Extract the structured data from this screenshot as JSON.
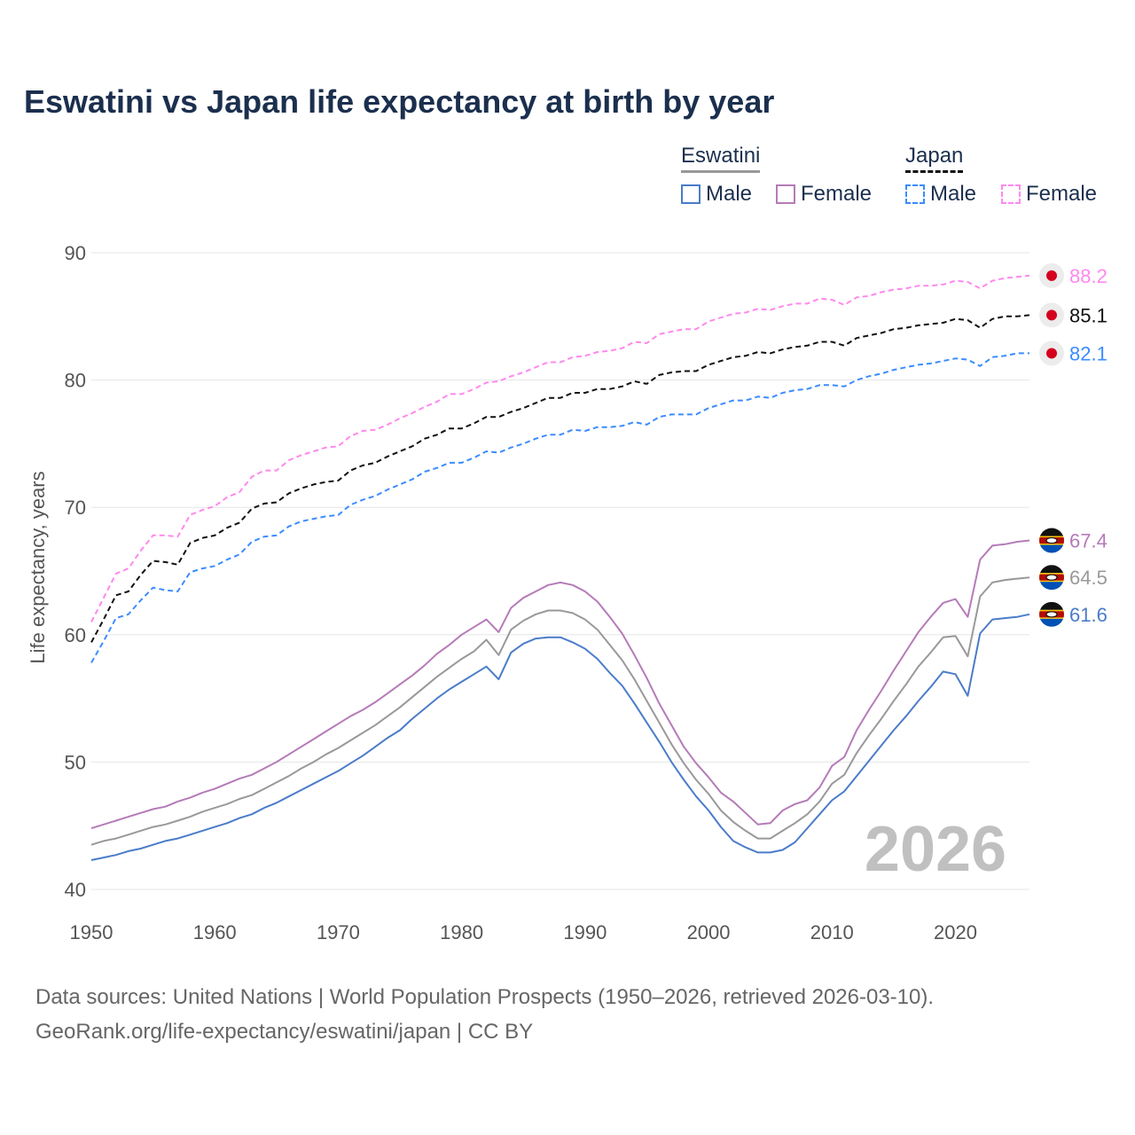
{
  "title": "Eswatini vs Japan life expectancy at birth by year",
  "legend": {
    "groups": [
      {
        "name": "Eswatini",
        "items": [
          "Male",
          "Female"
        ]
      },
      {
        "name": "Japan",
        "items": [
          "Male",
          "Female"
        ]
      }
    ]
  },
  "year_watermark": "2026",
  "footer": {
    "line1": "Data sources: United Nations | World Population Prospects (1950–2026, retrieved 2026-03-10).",
    "line2": "GeoRank.org/life-expectancy/eswatini/japan | CC BY"
  },
  "chart_data": {
    "type": "line",
    "title": "Eswatini vs Japan life expectancy at birth by year",
    "xlabel": "",
    "ylabel": "Life expectancy, years",
    "xlim": [
      1950,
      2026
    ],
    "ylim": [
      40,
      90
    ],
    "xticks": [
      1950,
      1960,
      1970,
      1980,
      1990,
      2000,
      2010,
      2020
    ],
    "yticks": [
      40,
      50,
      60,
      70,
      80,
      90
    ],
    "grid": true,
    "x_start": 1950,
    "series": [
      {
        "name": "Japan Female",
        "country": "Japan",
        "sex": "Female",
        "color": "#ff88ee",
        "dashed": true,
        "end_label": "88.2",
        "values": [
          61.0,
          62.9,
          64.8,
          65.2,
          66.6,
          67.8,
          67.8,
          67.7,
          69.4,
          69.8,
          70.1,
          70.8,
          71.2,
          72.4,
          72.9,
          72.9,
          73.7,
          74.1,
          74.4,
          74.7,
          74.8,
          75.6,
          76.0,
          76.1,
          76.5,
          77.0,
          77.4,
          77.9,
          78.3,
          78.9,
          78.9,
          79.3,
          79.8,
          79.9,
          80.3,
          80.6,
          81.0,
          81.4,
          81.4,
          81.8,
          81.9,
          82.2,
          82.3,
          82.5,
          83.0,
          82.9,
          83.6,
          83.8,
          84.0,
          84.0,
          84.6,
          84.9,
          85.2,
          85.3,
          85.6,
          85.5,
          85.8,
          86.0,
          86.0,
          86.4,
          86.3,
          85.9,
          86.5,
          86.6,
          86.9,
          87.1,
          87.2,
          87.4,
          87.4,
          87.5,
          87.8,
          87.7,
          87.2,
          87.8,
          88.0,
          88.1,
          88.2
        ]
      },
      {
        "name": "Japan Both",
        "country": "Japan",
        "sex": "Both",
        "color": "#111111",
        "dashed": true,
        "end_label": "85.1",
        "values": [
          59.4,
          61.2,
          63.1,
          63.4,
          64.7,
          65.8,
          65.7,
          65.5,
          67.2,
          67.6,
          67.8,
          68.4,
          68.8,
          69.9,
          70.3,
          70.4,
          71.1,
          71.5,
          71.8,
          72.0,
          72.1,
          72.9,
          73.3,
          73.5,
          74.0,
          74.4,
          74.8,
          75.4,
          75.7,
          76.2,
          76.2,
          76.6,
          77.1,
          77.1,
          77.5,
          77.8,
          78.2,
          78.6,
          78.6,
          79.0,
          79.0,
          79.3,
          79.3,
          79.5,
          79.9,
          79.7,
          80.4,
          80.6,
          80.7,
          80.7,
          81.2,
          81.5,
          81.8,
          81.9,
          82.2,
          82.1,
          82.4,
          82.6,
          82.7,
          83.0,
          83.0,
          82.7,
          83.3,
          83.5,
          83.7,
          84.0,
          84.1,
          84.3,
          84.4,
          84.5,
          84.8,
          84.7,
          84.1,
          84.8,
          85.0,
          85.0,
          85.1
        ]
      },
      {
        "name": "Japan Male",
        "country": "Japan",
        "sex": "Male",
        "color": "#3b8cff",
        "dashed": true,
        "end_label": "82.1",
        "values": [
          57.8,
          59.5,
          61.3,
          61.6,
          62.7,
          63.7,
          63.5,
          63.4,
          64.9,
          65.2,
          65.4,
          65.9,
          66.3,
          67.3,
          67.7,
          67.8,
          68.5,
          68.9,
          69.1,
          69.3,
          69.4,
          70.2,
          70.6,
          70.9,
          71.4,
          71.8,
          72.2,
          72.8,
          73.1,
          73.5,
          73.5,
          73.9,
          74.4,
          74.3,
          74.7,
          75.0,
          75.4,
          75.7,
          75.7,
          76.1,
          76.0,
          76.3,
          76.3,
          76.4,
          76.7,
          76.5,
          77.1,
          77.3,
          77.3,
          77.3,
          77.8,
          78.1,
          78.4,
          78.4,
          78.7,
          78.6,
          79.0,
          79.2,
          79.3,
          79.6,
          79.6,
          79.5,
          80.0,
          80.3,
          80.5,
          80.8,
          81.0,
          81.2,
          81.3,
          81.5,
          81.7,
          81.6,
          81.1,
          81.8,
          81.9,
          82.1,
          82.1
        ]
      },
      {
        "name": "Eswatini Female",
        "country": "Eswatini",
        "sex": "Female",
        "color": "#b57bb8",
        "dashed": false,
        "end_label": "67.4",
        "values": [
          44.8,
          45.1,
          45.4,
          45.7,
          46.0,
          46.3,
          46.5,
          46.9,
          47.2,
          47.6,
          47.9,
          48.3,
          48.7,
          49.0,
          49.5,
          50.0,
          50.6,
          51.2,
          51.8,
          52.4,
          53.0,
          53.6,
          54.1,
          54.7,
          55.4,
          56.1,
          56.8,
          57.6,
          58.5,
          59.2,
          60.0,
          60.6,
          61.2,
          60.2,
          62.1,
          62.9,
          63.4,
          63.9,
          64.1,
          63.9,
          63.4,
          62.6,
          61.4,
          60.1,
          58.4,
          56.6,
          54.6,
          52.9,
          51.2,
          49.9,
          48.8,
          47.6,
          46.9,
          46.0,
          45.1,
          45.2,
          46.2,
          46.7,
          47.0,
          48.0,
          49.7,
          50.4,
          52.5,
          54.1,
          55.6,
          57.2,
          58.7,
          60.2,
          61.4,
          62.5,
          62.8,
          61.4,
          65.9,
          67.0,
          67.1,
          67.3,
          67.4
        ]
      },
      {
        "name": "Eswatini Both",
        "country": "Eswatini",
        "sex": "Both",
        "color": "#999999",
        "dashed": false,
        "end_label": "64.5",
        "values": [
          43.5,
          43.8,
          44.0,
          44.3,
          44.6,
          44.9,
          45.1,
          45.4,
          45.7,
          46.1,
          46.4,
          46.7,
          47.1,
          47.4,
          47.9,
          48.4,
          48.9,
          49.5,
          50.0,
          50.6,
          51.1,
          51.7,
          52.3,
          52.9,
          53.6,
          54.3,
          55.1,
          55.9,
          56.7,
          57.4,
          58.1,
          58.7,
          59.6,
          58.4,
          60.4,
          61.1,
          61.6,
          61.9,
          61.9,
          61.7,
          61.2,
          60.4,
          59.2,
          58.0,
          56.5,
          54.8,
          53.1,
          51.4,
          49.9,
          48.6,
          47.5,
          46.2,
          45.3,
          44.6,
          44.0,
          44.0,
          44.6,
          45.2,
          45.9,
          46.9,
          48.3,
          49.0,
          50.7,
          52.1,
          53.4,
          54.8,
          56.1,
          57.5,
          58.6,
          59.8,
          59.9,
          58.3,
          63.0,
          64.1,
          64.3,
          64.4,
          64.5
        ]
      },
      {
        "name": "Eswatini Male",
        "country": "Eswatini",
        "sex": "Male",
        "color": "#4a7cc9",
        "dashed": false,
        "end_label": "61.6",
        "values": [
          42.3,
          42.5,
          42.7,
          43.0,
          43.2,
          43.5,
          43.8,
          44.0,
          44.3,
          44.6,
          44.9,
          45.2,
          45.6,
          45.9,
          46.4,
          46.8,
          47.3,
          47.8,
          48.3,
          48.8,
          49.3,
          49.9,
          50.5,
          51.2,
          51.9,
          52.5,
          53.4,
          54.2,
          55.0,
          55.7,
          56.3,
          56.9,
          57.5,
          56.5,
          58.6,
          59.3,
          59.7,
          59.8,
          59.8,
          59.4,
          58.9,
          58.1,
          57.0,
          56.0,
          54.6,
          53.1,
          51.6,
          50.0,
          48.6,
          47.3,
          46.2,
          44.9,
          43.8,
          43.3,
          42.9,
          42.9,
          43.1,
          43.7,
          44.8,
          45.9,
          47.0,
          47.7,
          48.9,
          50.1,
          51.3,
          52.5,
          53.6,
          54.8,
          55.9,
          57.1,
          56.9,
          55.2,
          60.1,
          61.2,
          61.3,
          61.4,
          61.6
        ]
      }
    ]
  }
}
